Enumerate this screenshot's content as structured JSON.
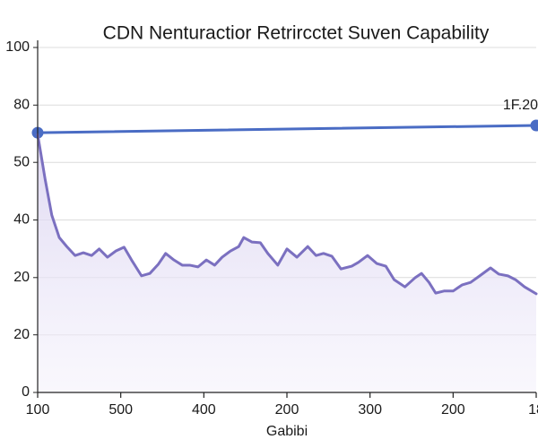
{
  "chart_data": {
    "type": "line",
    "title": "CDN Nenturactior Retrircctet Suven Capability",
    "x_label": "Gabibi",
    "xlim": [
      0,
      6
    ],
    "xticks": [
      {
        "value": 0,
        "label": "100"
      },
      {
        "value": 1,
        "label": "500"
      },
      {
        "value": 2,
        "label": "400"
      },
      {
        "value": 3,
        "label": "200"
      },
      {
        "value": 4,
        "label": "300"
      },
      {
        "value": 5,
        "label": "200"
      },
      {
        "value": 6,
        "label": "18"
      }
    ],
    "ylim": [
      0,
      100
    ],
    "yticks": [
      0,
      {
        "value": 16.7,
        "label": "20"
      },
      {
        "value": 33.3,
        "label": "20"
      },
      {
        "value": 50,
        "label": "40"
      },
      {
        "value": 66.7,
        "label": "50"
      },
      {
        "value": 83.3,
        "label": "80"
      },
      100
    ],
    "grid": true,
    "annotation": "1F.20",
    "series": [
      {
        "color": "#4a6cc4",
        "markers": true,
        "x": [
          0,
          6
        ],
        "values": [
          75.3,
          77.4
        ]
      },
      {
        "color": "#7b70c0",
        "area": true,
        "x": [
          0,
          0.09,
          0.17,
          0.26,
          0.35,
          0.45,
          0.55,
          0.65,
          0.74,
          0.84,
          0.94,
          1.04,
          1.13,
          1.25,
          1.35,
          1.45,
          1.54,
          1.64,
          1.74,
          1.83,
          1.93,
          2.03,
          2.13,
          2.22,
          2.32,
          2.42,
          2.48,
          2.58,
          2.68,
          2.77,
          2.89,
          3.0,
          3.12,
          3.25,
          3.35,
          3.44,
          3.54,
          3.65,
          3.78,
          3.86,
          3.97,
          4.08,
          4.19,
          4.29,
          4.42,
          4.54,
          4.62,
          4.71,
          4.79,
          4.89,
          5.0,
          5.11,
          5.21,
          5.32,
          5.45,
          5.55,
          5.66,
          5.75,
          5.86,
          6
        ],
        "values": [
          74.8,
          61.8,
          51.4,
          44.9,
          42.3,
          39.7,
          40.5,
          39.7,
          41.6,
          39.2,
          41.0,
          42.1,
          38.4,
          33.8,
          34.5,
          37.1,
          40.3,
          38.4,
          36.9,
          36.9,
          36.4,
          38.4,
          36.9,
          39.2,
          41.0,
          42.3,
          44.9,
          43.6,
          43.4,
          40.3,
          36.9,
          41.6,
          39.2,
          42.3,
          39.7,
          40.3,
          39.5,
          35.8,
          36.6,
          37.7,
          39.7,
          37.4,
          36.6,
          32.7,
          30.6,
          33.2,
          34.5,
          31.9,
          28.8,
          29.4,
          29.4,
          31.2,
          31.9,
          33.8,
          36.1,
          34.3,
          33.8,
          32.7,
          30.6,
          28.6
        ]
      }
    ]
  }
}
